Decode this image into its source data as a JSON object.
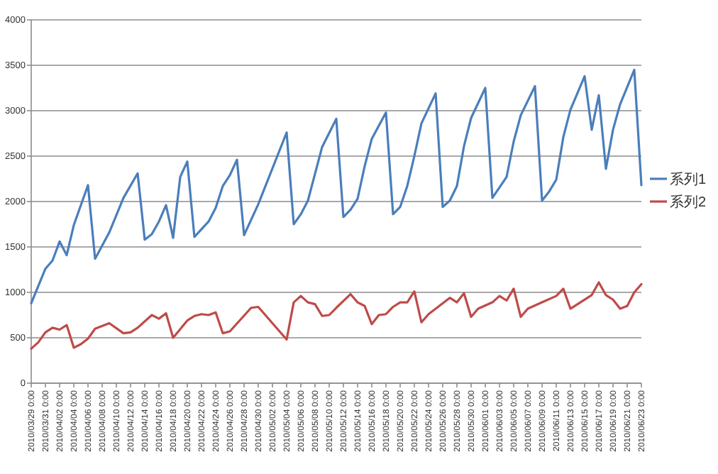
{
  "chart_data": {
    "type": "line",
    "xlim": [
      "2010-03-29",
      "2010-06-23"
    ],
    "xticks": [
      {
        "value": "2010-03-29",
        "label": "2010/03/29 0:00"
      },
      {
        "value": "2010-03-31",
        "label": "2010/03/31 0:00"
      },
      {
        "value": "2010-04-02",
        "label": "2010/04/02 0:00"
      },
      {
        "value": "2010-04-04",
        "label": "2010/04/04 0:00"
      },
      {
        "value": "2010-04-06",
        "label": "2010/04/06 0:00"
      },
      {
        "value": "2010-04-08",
        "label": "2010/04/08 0:00"
      },
      {
        "value": "2010-04-10",
        "label": "2010/04/10 0:00"
      },
      {
        "value": "2010-04-12",
        "label": "2010/04/12 0:00"
      },
      {
        "value": "2010-04-14",
        "label": "2010/04/14 0:00"
      },
      {
        "value": "2010-04-16",
        "label": "2010/04/16 0:00"
      },
      {
        "value": "2010-04-18",
        "label": "2010/04/18 0:00"
      },
      {
        "value": "2010-04-20",
        "label": "2010/04/20 0:00"
      },
      {
        "value": "2010-04-22",
        "label": "2010/04/22 0:00"
      },
      {
        "value": "2010-04-24",
        "label": "2010/04/24 0:00"
      },
      {
        "value": "2010-04-26",
        "label": "2010/04/26 0:00"
      },
      {
        "value": "2010-04-28",
        "label": "2010/04/28 0:00"
      },
      {
        "value": "2010-04-30",
        "label": "2010/04/30 0:00"
      },
      {
        "value": "2010-05-02",
        "label": "2010/05/02 0:00"
      },
      {
        "value": "2010-05-04",
        "label": "2010/05/04 0:00"
      },
      {
        "value": "2010-05-06",
        "label": "2010/05/06 0:00"
      },
      {
        "value": "2010-05-08",
        "label": "2010/05/08 0:00"
      },
      {
        "value": "2010-05-10",
        "label": "2010/05/10 0:00"
      },
      {
        "value": "2010-05-12",
        "label": "2010/05/12 0:00"
      },
      {
        "value": "2010-05-14",
        "label": "2010/05/14 0:00"
      },
      {
        "value": "2010-05-16",
        "label": "2010/05/16 0:00"
      },
      {
        "value": "2010-05-18",
        "label": "2010/05/18 0:00"
      },
      {
        "value": "2010-05-20",
        "label": "2010/05/20 0:00"
      },
      {
        "value": "2010-05-22",
        "label": "2010/05/22 0:00"
      },
      {
        "value": "2010-05-24",
        "label": "2010/05/24 0:00"
      },
      {
        "value": "2010-05-26",
        "label": "2010/05/26 0:00"
      },
      {
        "value": "2010-05-28",
        "label": "2010/05/28 0:00"
      },
      {
        "value": "2010-05-30",
        "label": "2010/05/30 0:00"
      },
      {
        "value": "2010-06-01",
        "label": "2010/06/01 0:00"
      },
      {
        "value": "2010-06-03",
        "label": "2010/06/03 0:00"
      },
      {
        "value": "2010-06-05",
        "label": "2010/06/05 0:00"
      },
      {
        "value": "2010-06-07",
        "label": "2010/06/07 0:00"
      },
      {
        "value": "2010-06-09",
        "label": "2010/06/09 0:00"
      },
      {
        "value": "2010-06-11",
        "label": "2010/06/11 0:00"
      },
      {
        "value": "2010-06-13",
        "label": "2010/06/13 0:00"
      },
      {
        "value": "2010-06-15",
        "label": "2010/06/15 0:00"
      },
      {
        "value": "2010-06-17",
        "label": "2010/06/17 0:00"
      },
      {
        "value": "2010-06-19",
        "label": "2010/06/19 0:00"
      },
      {
        "value": "2010-06-21",
        "label": "2010/06/21 0:00"
      },
      {
        "value": "2010-06-23",
        "label": "2010/06/23 0:00"
      }
    ],
    "ylim": [
      0,
      4000
    ],
    "yticks": [
      0,
      500,
      1000,
      1500,
      2000,
      2500,
      3000,
      3500,
      4000
    ],
    "grid": "y",
    "legend": "right",
    "series": [
      {
        "name": "系列1",
        "color": "#4a7ebb",
        "x": [
          "2010-03-29",
          "2010-03-31",
          "2010-04-01",
          "2010-04-02",
          "2010-04-03",
          "2010-04-04",
          "2010-04-06",
          "2010-04-07",
          "2010-04-09",
          "2010-04-11",
          "2010-04-13",
          "2010-04-14",
          "2010-04-15",
          "2010-04-16",
          "2010-04-17",
          "2010-04-18",
          "2010-04-19",
          "2010-04-20",
          "2010-04-21",
          "2010-04-23",
          "2010-04-24",
          "2010-04-25",
          "2010-04-26",
          "2010-04-27",
          "2010-04-28",
          "2010-04-30",
          "2010-05-04",
          "2010-05-05",
          "2010-05-06",
          "2010-05-07",
          "2010-05-09",
          "2010-05-11",
          "2010-05-12",
          "2010-05-13",
          "2010-05-14",
          "2010-05-15",
          "2010-05-16",
          "2010-05-18",
          "2010-05-19",
          "2010-05-20",
          "2010-05-21",
          "2010-05-22",
          "2010-05-23",
          "2010-05-25",
          "2010-05-26",
          "2010-05-27",
          "2010-05-28",
          "2010-05-29",
          "2010-05-30",
          "2010-06-01",
          "2010-06-02",
          "2010-06-04",
          "2010-06-05",
          "2010-06-06",
          "2010-06-08",
          "2010-06-09",
          "2010-06-10",
          "2010-06-11",
          "2010-06-12",
          "2010-06-13",
          "2010-06-15",
          "2010-06-16",
          "2010-06-17",
          "2010-06-18",
          "2010-06-19",
          "2010-06-20",
          "2010-06-22",
          "2010-06-23"
        ],
        "values": [
          880,
          1260,
          1350,
          1560,
          1410,
          1740,
          2180,
          1370,
          1660,
          2040,
          2310,
          1580,
          1640,
          1780,
          1960,
          1600,
          2270,
          2440,
          1610,
          1780,
          1930,
          2170,
          2290,
          2460,
          1630,
          1970,
          2760,
          1750,
          1860,
          2010,
          2600,
          2910,
          1830,
          1910,
          2030,
          2390,
          2690,
          2980,
          1860,
          1940,
          2170,
          2500,
          2860,
          3190,
          1940,
          2010,
          2170,
          2610,
          2920,
          3250,
          2040,
          2270,
          2660,
          2950,
          3270,
          2010,
          2110,
          2240,
          2710,
          3010,
          3380,
          2790,
          3170,
          2360,
          2790,
          3070,
          3450,
          2180
        ]
      },
      {
        "name": "系列2",
        "color": "#be4b48",
        "x": [
          "2010-03-29",
          "2010-03-30",
          "2010-03-31",
          "2010-04-01",
          "2010-04-02",
          "2010-04-03",
          "2010-04-04",
          "2010-04-05",
          "2010-04-06",
          "2010-04-07",
          "2010-04-09",
          "2010-04-11",
          "2010-04-12",
          "2010-04-13",
          "2010-04-15",
          "2010-04-16",
          "2010-04-17",
          "2010-04-18",
          "2010-04-20",
          "2010-04-21",
          "2010-04-22",
          "2010-04-23",
          "2010-04-24",
          "2010-04-25",
          "2010-04-26",
          "2010-04-29",
          "2010-04-30",
          "2010-05-04",
          "2010-05-05",
          "2010-05-06",
          "2010-05-07",
          "2010-05-08",
          "2010-05-09",
          "2010-05-10",
          "2010-05-11",
          "2010-05-13",
          "2010-05-14",
          "2010-05-15",
          "2010-05-16",
          "2010-05-17",
          "2010-05-18",
          "2010-05-19",
          "2010-05-20",
          "2010-05-21",
          "2010-05-22",
          "2010-05-23",
          "2010-05-24",
          "2010-05-27",
          "2010-05-28",
          "2010-05-29",
          "2010-05-30",
          "2010-05-31",
          "2010-06-02",
          "2010-06-03",
          "2010-06-04",
          "2010-06-05",
          "2010-06-06",
          "2010-06-07",
          "2010-06-09",
          "2010-06-11",
          "2010-06-12",
          "2010-06-13",
          "2010-06-16",
          "2010-06-17",
          "2010-06-18",
          "2010-06-19",
          "2010-06-20",
          "2010-06-21",
          "2010-06-22",
          "2010-06-23"
        ],
        "values": [
          380,
          450,
          560,
          610,
          590,
          640,
          390,
          430,
          490,
          600,
          660,
          550,
          560,
          610,
          750,
          710,
          770,
          500,
          690,
          740,
          760,
          750,
          780,
          550,
          570,
          830,
          840,
          480,
          890,
          960,
          890,
          870,
          740,
          750,
          830,
          980,
          890,
          850,
          650,
          750,
          760,
          840,
          890,
          890,
          1010,
          670,
          760,
          940,
          890,
          990,
          730,
          820,
          890,
          960,
          910,
          1040,
          730,
          820,
          890,
          960,
          1040,
          820,
          970,
          1110,
          970,
          920,
          820,
          850,
          1000,
          1090
        ]
      }
    ]
  }
}
